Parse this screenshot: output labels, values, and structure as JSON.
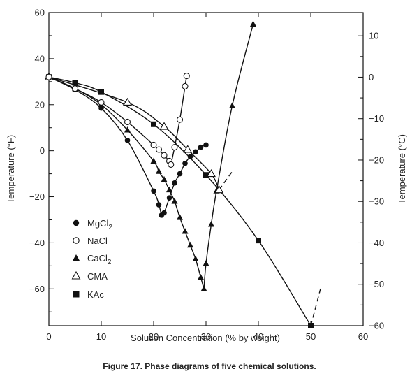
{
  "caption": "Figure 17. Phase diagrams of five chemical solutions.",
  "chart_data": {
    "type": "scatter",
    "xlabel": "Solution Concentration (% by weight)",
    "ylabel_left": "Temperature (°F)",
    "ylabel_right": "Temperature (°C)",
    "xlim": [
      0,
      60
    ],
    "ylim_f": [
      -76,
      60
    ],
    "ylim_c": [
      -60,
      15.6
    ],
    "x_ticks": [
      0,
      10,
      20,
      30,
      40,
      50,
      60
    ],
    "y_ticks_f": [
      60,
      40,
      20,
      0,
      -20,
      -40,
      -60
    ],
    "y_ticks_c": [
      10,
      0,
      -10,
      -20,
      -30,
      -40,
      -50,
      -60
    ],
    "grid": false,
    "legend_position": "bottom-left",
    "series": [
      {
        "name": "MgCl2",
        "marker": "filled-circle",
        "points": [
          [
            0,
            32
          ],
          [
            5,
            26.5
          ],
          [
            10,
            18.5
          ],
          [
            15,
            4.5
          ],
          [
            20,
            -17.5
          ],
          [
            21,
            -23.5
          ],
          [
            21.5,
            -28
          ],
          [
            22,
            -27
          ],
          [
            23,
            -20.5
          ],
          [
            24,
            -14
          ],
          [
            25,
            -10
          ],
          [
            26,
            -5.5
          ],
          [
            27,
            -2.5
          ],
          [
            28,
            -0.5
          ],
          [
            29,
            1.5
          ],
          [
            30,
            2.5
          ]
        ]
      },
      {
        "name": "NaCl",
        "marker": "open-circle",
        "points": [
          [
            0,
            32
          ],
          [
            5,
            27
          ],
          [
            10,
            21
          ],
          [
            15,
            12.5
          ],
          [
            20,
            2.5
          ],
          [
            21,
            0.5
          ],
          [
            22,
            -2
          ],
          [
            23,
            -4.5
          ],
          [
            23.3,
            -6
          ],
          [
            24,
            1.5
          ],
          [
            25,
            13.5
          ],
          [
            26,
            28
          ],
          [
            26.3,
            32.5
          ]
        ]
      },
      {
        "name": "CaCl2",
        "marker": "filled-triangle",
        "points": [
          [
            0,
            32
          ],
          [
            5,
            27
          ],
          [
            10,
            20
          ],
          [
            15,
            9
          ],
          [
            20,
            -4.5
          ],
          [
            21,
            -9
          ],
          [
            22,
            -12.5
          ],
          [
            23,
            -17
          ],
          [
            24,
            -22
          ],
          [
            25,
            -29
          ],
          [
            26,
            -35
          ],
          [
            27,
            -41
          ],
          [
            28,
            -47
          ],
          [
            29,
            -55
          ],
          [
            29.6,
            -60
          ],
          [
            30,
            -49
          ],
          [
            31,
            -32
          ],
          [
            32,
            -17.5
          ],
          [
            35,
            19.5
          ],
          [
            39,
            55
          ]
        ]
      },
      {
        "name": "CMA",
        "marker": "open-triangle",
        "points": [
          [
            0,
            32
          ],
          [
            15,
            21
          ],
          [
            22,
            10.5
          ],
          [
            26.5,
            0.5
          ],
          [
            31,
            -10
          ],
          [
            32.5,
            -17
          ]
        ]
      },
      {
        "name": "KAc",
        "marker": "filled-square",
        "points": [
          [
            0,
            32
          ],
          [
            5,
            29.5
          ],
          [
            10,
            25.5
          ],
          [
            20,
            11.5
          ],
          [
            30,
            -10.5
          ],
          [
            40,
            -39
          ],
          [
            50,
            -76
          ]
        ]
      }
    ]
  },
  "legend_labels": {
    "mgcl2_base": "MgCl",
    "mgcl2_sub": "2",
    "nacl": "NaCl",
    "cacl2_base": "CaCl",
    "cacl2_sub": "2",
    "cma": "CMA",
    "kac": "KAc"
  }
}
